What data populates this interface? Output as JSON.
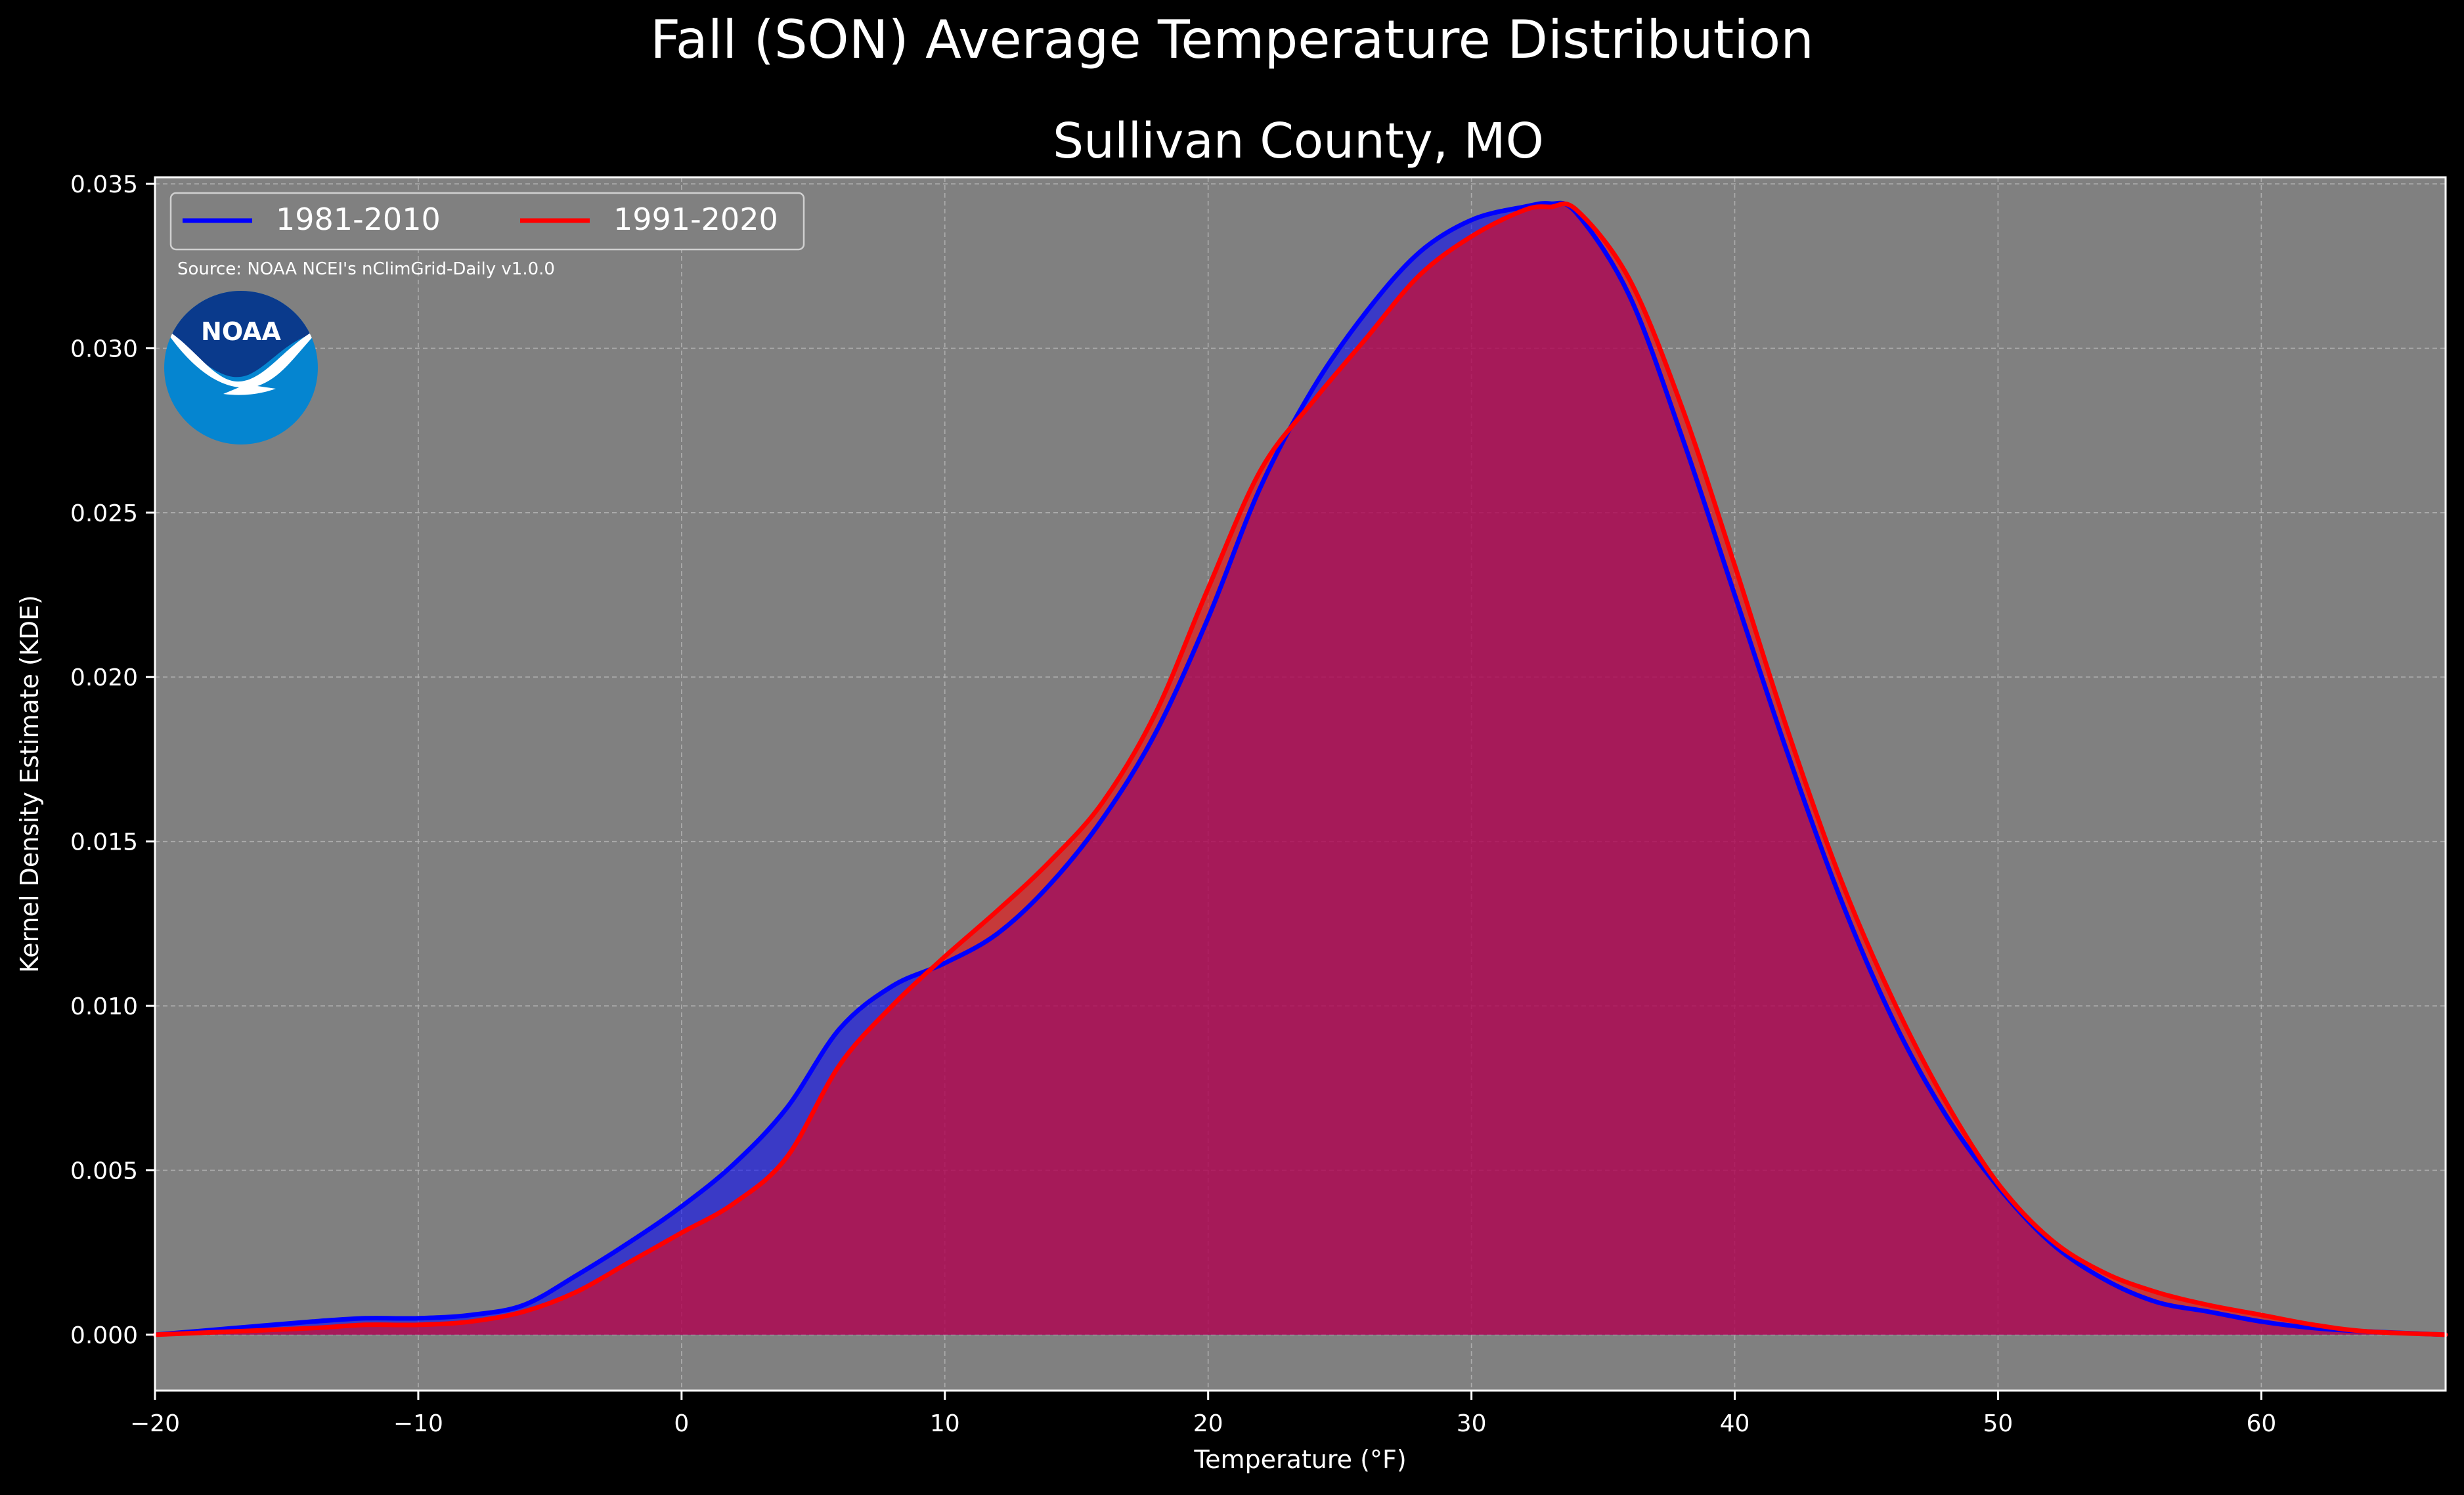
{
  "figure": {
    "suptitle": "Fall (SON) Average Temperature Distribution",
    "title": "Sullivan County, MO",
    "source_note": "Source: NOAA NCEI's nClimGrid-Daily v1.0.0",
    "logo_text": "NOAA"
  },
  "colors": {
    "figure_bg": "#000000",
    "axes_bg": "#808080",
    "text": "#ffffff",
    "grid": "#b4b4b4",
    "series_1981": "#0000ff",
    "series_1991": "#ff0000",
    "noaa_dark": "#0a3a8c",
    "noaa_light": "#0585d0"
  },
  "chart_data": {
    "type": "area",
    "title": "Sullivan County, MO",
    "xlabel": "Temperature (°F)",
    "ylabel": "Kernel Density Estimate (KDE)",
    "xlim": [
      -20,
      67
    ],
    "ylim": [
      -0.0017,
      0.0352
    ],
    "xticks": [
      -20,
      -10,
      0,
      10,
      20,
      30,
      40,
      50,
      60
    ],
    "xtick_labels": [
      "−20",
      "−10",
      "0",
      "10",
      "20",
      "30",
      "40",
      "50",
      "60"
    ],
    "yticks": [
      0.0,
      0.005,
      0.01,
      0.015,
      0.02,
      0.025,
      0.03,
      0.035
    ],
    "ytick_labels": [
      "0.000",
      "0.005",
      "0.010",
      "0.015",
      "0.020",
      "0.025",
      "0.030",
      "0.035"
    ],
    "grid": true,
    "legend_position": "top-left",
    "legend_ncol": 2,
    "x": [
      -20,
      -17,
      -14,
      -12,
      -10,
      -8,
      -6,
      -4,
      -2,
      0,
      2,
      4,
      6,
      8,
      10,
      12,
      14,
      16,
      18,
      20,
      22,
      24,
      26,
      28,
      30,
      32,
      33,
      34,
      36,
      38,
      40,
      42,
      44,
      46,
      48,
      50,
      52,
      54,
      56,
      58,
      60,
      62,
      64,
      67
    ],
    "series": [
      {
        "name": "1981-2010",
        "color": "#0000ff",
        "values": [
          0.0,
          0.0002,
          0.0004,
          0.0005,
          0.0005,
          0.0006,
          0.0009,
          0.0018,
          0.0028,
          0.0039,
          0.0052,
          0.0069,
          0.0093,
          0.0106,
          0.0113,
          0.0122,
          0.0137,
          0.0157,
          0.0183,
          0.0218,
          0.0258,
          0.0288,
          0.0311,
          0.0329,
          0.0339,
          0.0343,
          0.0344,
          0.0341,
          0.0316,
          0.0273,
          0.0225,
          0.0177,
          0.0133,
          0.0096,
          0.0067,
          0.0045,
          0.0028,
          0.0017,
          0.001,
          0.0007,
          0.0004,
          0.0002,
          0.0001,
          0.0
        ]
      },
      {
        "name": "1991-2020",
        "color": "#ff0000",
        "values": [
          0.0,
          0.0001,
          0.0002,
          0.0003,
          0.0003,
          0.0004,
          0.0007,
          0.0013,
          0.0022,
          0.0031,
          0.004,
          0.0054,
          0.0082,
          0.01,
          0.0115,
          0.0129,
          0.0144,
          0.0162,
          0.0189,
          0.0227,
          0.0263,
          0.0284,
          0.0303,
          0.0322,
          0.0334,
          0.0342,
          0.0343,
          0.0342,
          0.0321,
          0.0282,
          0.0234,
          0.0184,
          0.0139,
          0.0102,
          0.0071,
          0.0046,
          0.0029,
          0.0019,
          0.0013,
          0.0009,
          0.0006,
          0.0003,
          0.0001,
          0.0
        ]
      }
    ]
  }
}
